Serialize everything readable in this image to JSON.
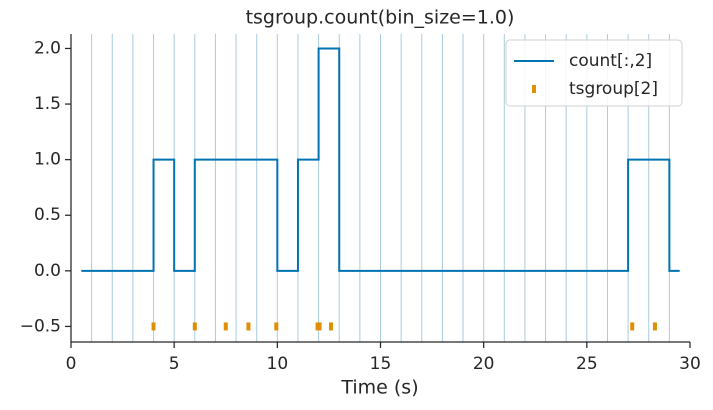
{
  "chart_data": {
    "type": "step",
    "title": "tsgroup.count(bin_size=1.0)",
    "x_label": "Time (s)",
    "xlim": [
      0,
      30
    ],
    "xticks": [
      0,
      5,
      10,
      15,
      20,
      25,
      30
    ],
    "ylim": [
      -0.64,
      2.13
    ],
    "yticks": [
      {
        "value": -0.5,
        "label": "−0.5"
      },
      {
        "value": 0,
        "label": "0.0"
      },
      0.5,
      {
        "value": 1,
        "label": "1.0"
      },
      1.5,
      {
        "value": 2,
        "label": "2.0"
      }
    ],
    "vlines": [
      1,
      2,
      3,
      4,
      5,
      6,
      7,
      8,
      9,
      10,
      11,
      12,
      13,
      14,
      15,
      16,
      17,
      18,
      19,
      20,
      21,
      22,
      23,
      24,
      25,
      26,
      27,
      28,
      29
    ],
    "vline_color": "#a9cbe0",
    "legend": "upper right",
    "series": [
      {
        "name": "count[:,2]",
        "color": "#0173b2",
        "x": [
          0.5,
          1.5,
          2.5,
          3.5,
          4.5,
          5.5,
          6.5,
          7.5,
          8.5,
          9.5,
          10.5,
          11.5,
          12.5,
          13.5,
          14.5,
          15.5,
          16.5,
          17.5,
          18.5,
          19.5,
          20.5,
          21.5,
          22.5,
          23.5,
          24.5,
          25.5,
          26.5,
          27.5,
          28.5,
          29.5
        ],
        "values": [
          0,
          0,
          0,
          0,
          1,
          0,
          1,
          1,
          1,
          1,
          0,
          1,
          2,
          0,
          0,
          0,
          0,
          0,
          0,
          0,
          0,
          0,
          0,
          0,
          0,
          0,
          0,
          1,
          1,
          0
        ]
      },
      {
        "name": "tsgroup[2]",
        "color": "#de8f05",
        "x": [
          4.0,
          6.0,
          7.5,
          8.6,
          9.95,
          11.95,
          12.05,
          12.6,
          27.2,
          28.3
        ],
        "values": [
          -0.5,
          -0.5,
          -0.5,
          -0.5,
          -0.5,
          -0.5,
          -0.5,
          -0.5,
          -0.5,
          -0.5
        ]
      }
    ]
  }
}
